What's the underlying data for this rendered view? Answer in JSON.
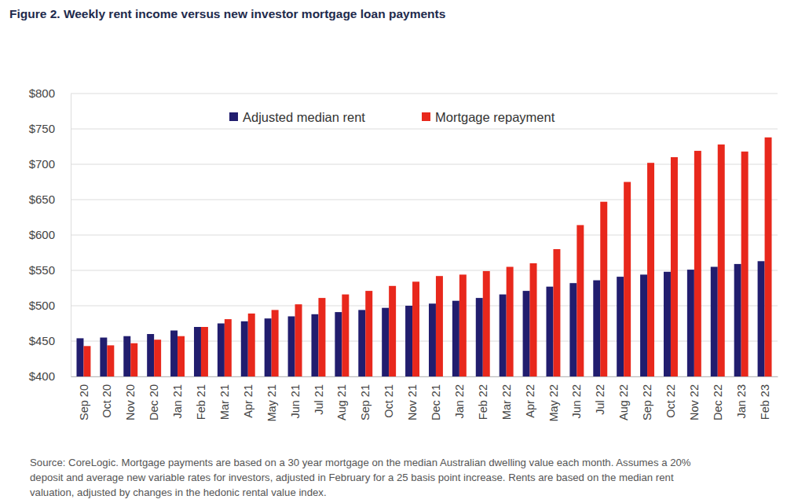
{
  "chart_data": {
    "type": "bar",
    "title": "Figure 2. Weekly rent income versus new investor mortgage loan payments",
    "annotations": [
      "Source: CoreLogic. Mortgage payments are based on a 30 year mortgage on the median Australian dwelling value each month. Assumes a 20%",
      "deposit and average new variable rates for investors, adjusted in February for a 25 basis point increase. Rents are based on the median rent",
      "valuation, adjusted by changes in the hedonic rental value index."
    ],
    "categories": [
      "Sep 20",
      "Oct 20",
      "Nov 20",
      "Dec 20",
      "Jan 21",
      "Feb 21",
      "Mar 21",
      "Apr 21",
      "May 21",
      "Jun 21",
      "Jul 21",
      "Aug 21",
      "Sep 21",
      "Oct 21",
      "Nov 21",
      "Dec 21",
      "Jan 22",
      "Feb 22",
      "Mar 22",
      "Apr 22",
      "May 22",
      "Jun 22",
      "Jul 22",
      "Aug 22",
      "Sep 22",
      "Oct 22",
      "Nov 22",
      "Dec 22",
      "Jan 23",
      "Feb 23"
    ],
    "series": [
      {
        "name": "Adjusted median rent",
        "color": "#211d6e",
        "values": [
          454,
          455,
          457,
          460,
          465,
          470,
          475,
          478,
          482,
          485,
          488,
          491,
          494,
          497,
          500,
          503,
          507,
          511,
          516,
          521,
          527,
          532,
          536,
          541,
          544,
          548,
          551,
          555,
          559,
          563
        ]
      },
      {
        "name": "Mortgage repayment",
        "color": "#e8281c",
        "values": [
          443,
          444,
          447,
          452,
          457,
          470,
          481,
          489,
          494,
          502,
          511,
          516,
          521,
          528,
          534,
          542,
          544,
          549,
          555,
          560,
          580,
          614,
          647,
          675,
          702,
          710,
          719,
          728,
          718,
          738
        ]
      }
    ],
    "ylim": [
      400,
      800
    ],
    "yticks": [
      {
        "value": 400,
        "label": "$400"
      },
      {
        "value": 450,
        "label": "$450"
      },
      {
        "value": 500,
        "label": "$500"
      },
      {
        "value": 550,
        "label": "$550"
      },
      {
        "value": 600,
        "label": "$600"
      },
      {
        "value": 650,
        "label": "$650"
      },
      {
        "value": 700,
        "label": "$700"
      },
      {
        "value": 750,
        "label": "$750"
      },
      {
        "value": 800,
        "label": "$800"
      }
    ],
    "grid": true,
    "legend": "top"
  }
}
